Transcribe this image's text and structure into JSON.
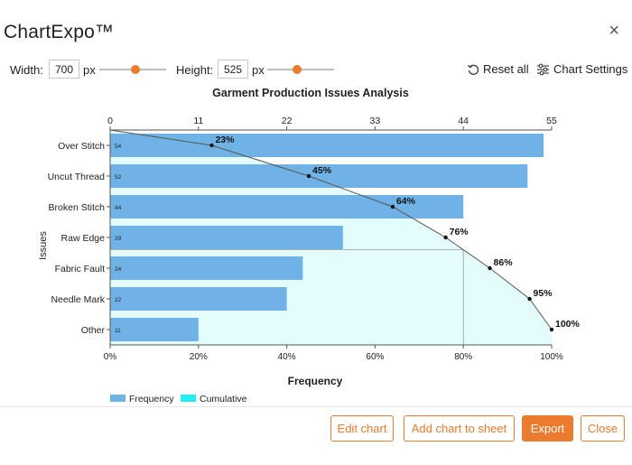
{
  "dialog": {
    "title": "ChartExpo™",
    "close_label": "×"
  },
  "toolbar": {
    "width_label": "Width:",
    "width_value": "700",
    "width_unit": "px",
    "height_label": "Height:",
    "height_value": "525",
    "height_unit": "px",
    "reset_label": "Reset all",
    "settings_label": "Chart Settings"
  },
  "footer": {
    "edit_label": "Edit chart",
    "add_label": "Add chart to sheet",
    "export_label": "Export",
    "close_label": "Close"
  },
  "colors": {
    "accent": "#ea7b2f",
    "bar": "#6fb2e6",
    "cumulative_fill": "#e3fdfd",
    "cumulative_legend": "#20f0f0",
    "line": "#555555"
  },
  "chart_data": {
    "type": "bar",
    "orientation": "horizontal",
    "title": "Garment Production Issues Analysis",
    "xlabel": "Frequency",
    "ylabel": "Issues",
    "categories": [
      "Over Stitch",
      "Uncut Thread",
      "Broken Stitch",
      "Raw Edge",
      "Fabric Fault",
      "Needle Mark",
      "Other"
    ],
    "values": [
      54,
      52,
      44,
      29,
      24,
      22,
      11
    ],
    "value_labels": [
      "54",
      "52",
      "44",
      "29",
      "24",
      "22",
      "11"
    ],
    "xlim": [
      0,
      55
    ],
    "top_ticks": [
      "0",
      "11",
      "22",
      "33",
      "44",
      "55"
    ],
    "bottom_ticks": [
      "0%",
      "20%",
      "40%",
      "60%",
      "80%",
      "100%"
    ],
    "cumulative_percent": [
      23,
      45,
      64,
      76,
      86,
      95,
      100
    ],
    "cumulative_labels": [
      "23%",
      "45%",
      "64%",
      "76%",
      "86%",
      "95%",
      "100%"
    ],
    "pareto_threshold_percent": 80,
    "legend": [
      {
        "name": "Frequency"
      },
      {
        "name": "Cumulative"
      }
    ],
    "legend_position": "bottom-left"
  }
}
